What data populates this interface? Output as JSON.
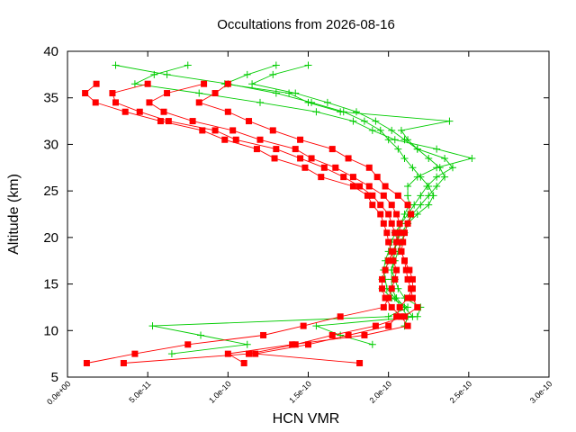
{
  "chart_data": {
    "type": "line",
    "title": "Occultations from 2026-08-16",
    "xlabel": "HCN VMR",
    "ylabel": "Altitude (km)",
    "xlim": [
      0,
      3e-10
    ],
    "ylim": [
      5,
      40
    ],
    "xticks": [
      {
        "value": 0,
        "label": "0.0e+00"
      },
      {
        "value": 5e-11,
        "label": "5.0e-11"
      },
      {
        "value": 1e-10,
        "label": "1.0e-10"
      },
      {
        "value": 1.5e-10,
        "label": "1.5e-10"
      },
      {
        "value": 2e-10,
        "label": "2.0e-10"
      },
      {
        "value": 2.5e-10,
        "label": "2.5e-10"
      },
      {
        "value": 3e-10,
        "label": "3.0e-10"
      }
    ],
    "yticks": [
      {
        "value": 5,
        "label": "5"
      },
      {
        "value": 10,
        "label": "10"
      },
      {
        "value": 15,
        "label": "15"
      },
      {
        "value": 20,
        "label": "20"
      },
      {
        "value": 25,
        "label": "25"
      },
      {
        "value": 30,
        "label": "30"
      },
      {
        "value": 35,
        "label": "35"
      },
      {
        "value": 40,
        "label": "40"
      }
    ],
    "grid": false,
    "legend": "none",
    "series": [
      {
        "color": "#ff0000",
        "marker": "square",
        "y": [
          36.5,
          35.5,
          34.5,
          33.5,
          32.5,
          31.5,
          30.5,
          29.5,
          28.5,
          27.5,
          26.5,
          25.5,
          24.5,
          23.5,
          22.5,
          21.5,
          20.5,
          19.5,
          18.5,
          17.5,
          16.5,
          15.5,
          14.5,
          13.5,
          12.5,
          11.5,
          10.5,
          9.5,
          8.5,
          7.5,
          6.5
        ],
        "x": [
          1.8e-11,
          1.1e-11,
          1.75e-11,
          3.6e-11,
          5.8e-11,
          8.4e-11,
          9.8e-11,
          1.18e-10,
          1.29e-10,
          1.48e-10,
          1.58e-10,
          1.78e-10,
          1.87e-10,
          1.9e-10,
          1.95e-10,
          1.97e-10,
          1.99e-10,
          2e-10,
          2.02e-10,
          2.03e-10,
          2.05e-10,
          2.04e-10,
          2.02e-10,
          2e-10,
          1.97e-10,
          1.7e-10,
          1.47e-10,
          1.22e-10,
          7.5e-11,
          4.2e-11,
          1.2e-11
        ]
      },
      {
        "color": "#ff0000",
        "marker": "square",
        "y": [
          36.5,
          35.5,
          34.5,
          33.5,
          32.5,
          31.5,
          30.5,
          29.5,
          28.5,
          27.5,
          26.5,
          25.5,
          24.5,
          23.5,
          22.5,
          21.5,
          20.5,
          19.5,
          18.5,
          17.5,
          16.5,
          15.5,
          14.5,
          13.5,
          12.5,
          11.5,
          10.5,
          9.5,
          8.5,
          7.5,
          6.5
        ],
        "x": [
          5e-11,
          2.8e-11,
          3e-11,
          4.5e-11,
          6.3e-11,
          9.2e-11,
          1.05e-10,
          1.3e-10,
          1.45e-10,
          1.6e-10,
          1.72e-10,
          1.82e-10,
          1.9e-10,
          1.95e-10,
          2e-10,
          2.02e-10,
          2.04e-10,
          2.06e-10,
          2.08e-10,
          2.1e-10,
          2.11e-10,
          2.12e-10,
          2.14e-10,
          2.15e-10,
          2.18e-10,
          2.1e-10,
          1.92e-10,
          1.65e-10,
          1.42e-10,
          1.13e-10,
          3.5e-11
        ]
      },
      {
        "color": "#ff0000",
        "marker": "square",
        "y": [
          36.5,
          35.5,
          34.5,
          33.5,
          32.5,
          31.5,
          30.5,
          29.5,
          28.5,
          27.5,
          26.5,
          25.5,
          24.5,
          23.5,
          22.5,
          21.5,
          20.5,
          19.5,
          18.5,
          17.5,
          16.5,
          15.5,
          14.5,
          13.5,
          12.5,
          11.5,
          10.5,
          9.5,
          8.5,
          7.5,
          6.5
        ],
        "x": [
          8.5e-11,
          6.2e-11,
          5.1e-11,
          6e-11,
          7.8e-11,
          1.03e-10,
          1.2e-10,
          1.42e-10,
          1.52e-10,
          1.67e-10,
          1.78e-10,
          1.88e-10,
          1.97e-10,
          2.02e-10,
          2.05e-10,
          2.07e-10,
          2.07e-10,
          2.05e-10,
          2.03e-10,
          2e-10,
          1.98e-10,
          1.96e-10,
          1.96e-10,
          1.98e-10,
          2.02e-10,
          2.08e-10,
          2.12e-10,
          1.85e-10,
          1.4e-10,
          1e-10,
          1.1e-10
        ]
      },
      {
        "color": "#ff0000",
        "marker": "square",
        "y": [
          36.5,
          35.5,
          34.5,
          33.5,
          32.5,
          31.5,
          30.5,
          29.5,
          28.5,
          27.5,
          26.5,
          25.5,
          24.5,
          23.5,
          22.5,
          21.5,
          20.5,
          19.5,
          18.5,
          17.5,
          16.5,
          15.5,
          14.5,
          13.5,
          12.5,
          11.5,
          10.5,
          9.5,
          8.5,
          7.5,
          6.5
        ],
        "x": [
          1e-10,
          9.2e-11,
          8.2e-11,
          1e-10,
          1.13e-10,
          1.28e-10,
          1.45e-10,
          1.65e-10,
          1.75e-10,
          1.88e-10,
          1.93e-10,
          1.98e-10,
          2.06e-10,
          2.12e-10,
          2.14e-10,
          2.12e-10,
          2.1e-10,
          2.09e-10,
          2.08e-10,
          2.1e-10,
          2.13e-10,
          2.15e-10,
          2.15e-10,
          2.12e-10,
          2.07e-10,
          2.05e-10,
          2e-10,
          1.75e-10,
          1.5e-10,
          1.17e-10,
          1.82e-10
        ]
      },
      {
        "color": "#00cc00",
        "marker": "plus",
        "y": [
          38.5,
          37.5,
          36.5,
          35.5,
          34.5,
          33.5,
          32.5,
          31.5,
          30.5,
          29.5,
          28.5,
          27.5,
          26.5,
          25.5,
          24.5,
          23.5,
          22.5,
          21.5,
          20.5,
          19.5,
          18.5,
          17.5,
          16.5,
          15.5,
          14.5,
          13.5,
          12.5,
          11.5,
          10.5,
          9.5,
          8.5,
          7.5
        ],
        "x": [
          3e-11,
          6.2e-11,
          1e-10,
          1.3e-10,
          1.52e-10,
          1.72e-10,
          1.85e-10,
          1.95e-10,
          2e-10,
          2.06e-10,
          2.1e-10,
          2.15e-10,
          2.2e-10,
          2.25e-10,
          2.28e-10,
          2.25e-10,
          2.18e-10,
          2.12e-10,
          2.08e-10,
          2.05e-10,
          2.03e-10,
          2e-10,
          1.98e-10,
          1.96e-10,
          1.96e-10,
          2.02e-10,
          2.12e-10,
          2e-10,
          5.3e-11,
          8.3e-11,
          1.12e-10,
          6.5e-11
        ]
      },
      {
        "color": "#00cc00",
        "marker": "plus",
        "y": [
          38.5,
          37.5,
          36.5,
          35.5,
          34.5,
          33.5,
          32.5,
          31.5,
          30.5,
          29.5,
          28.5,
          27.5,
          26.5,
          25.5,
          24.5,
          23.5,
          22.5,
          21.5,
          20.5,
          19.5,
          18.5,
          17.5,
          16.5,
          15.5,
          14.5,
          13.5,
          12.5,
          11.5,
          10.5,
          9.5,
          8.5
        ],
        "x": [
          7.5e-11,
          5.4e-11,
          4.2e-11,
          8.2e-11,
          1.2e-10,
          1.55e-10,
          1.78e-10,
          1.9e-10,
          2.04e-10,
          2.3e-10,
          2.52e-10,
          2.3e-10,
          2.18e-10,
          2.12e-10,
          2.12e-10,
          2.13e-10,
          2.1e-10,
          2.08e-10,
          2.06e-10,
          2.05e-10,
          2.04e-10,
          2.03e-10,
          2.02e-10,
          2.04e-10,
          2.06e-10,
          2.1e-10,
          2.2e-10,
          2.18e-10,
          1.55e-10,
          1.7e-10,
          1.9e-10
        ]
      },
      {
        "color": "#00cc00",
        "marker": "plus",
        "y": [
          38.5,
          37.5,
          36.5,
          35.5,
          34.5,
          33.5,
          32.5,
          31.5,
          30.5,
          29.5,
          28.5,
          27.5,
          26.5,
          25.5,
          24.5,
          23.5,
          22.5,
          21.5,
          20.5,
          19.5,
          18.5,
          17.5,
          16.5,
          15.5,
          14.5,
          13.5,
          12.5,
          11.5,
          10.5
        ],
        "x": [
          1.3e-10,
          1.12e-10,
          9.8e-11,
          1.38e-10,
          1.5e-10,
          1.7e-10,
          2.38e-10,
          2.08e-10,
          2.12e-10,
          2.18e-10,
          2.35e-10,
          2.4e-10,
          2.3e-10,
          2.24e-10,
          2.2e-10,
          2.16e-10,
          2.12e-10,
          2.08e-10,
          2.04e-10,
          2.02e-10,
          2e-10,
          1.98e-10,
          1.97e-10,
          1.98e-10,
          1.99e-10,
          2.04e-10,
          2.08e-10,
          2.12e-10,
          2.1e-10
        ]
      },
      {
        "color": "#00cc00",
        "marker": "plus",
        "y": [
          38.5,
          37.5,
          36.5,
          35.5,
          34.5,
          33.5,
          32.5,
          31.5,
          30.5,
          29.5,
          28.5,
          27.5,
          26.5,
          25.5,
          24.5,
          23.5,
          22.5,
          21.5,
          20.5,
          19.5,
          18.5,
          17.5,
          16.5,
          15.5,
          14.5,
          13.5,
          12.5,
          11.5
        ],
        "x": [
          1.5e-10,
          1.28e-10,
          1.15e-10,
          1.42e-10,
          1.62e-10,
          1.8e-10,
          1.92e-10,
          2.02e-10,
          2.1e-10,
          2.18e-10,
          2.25e-10,
          2.32e-10,
          2.35e-10,
          2.3e-10,
          2.25e-10,
          2.2e-10,
          2.15e-10,
          2.12e-10,
          2.1e-10,
          2.08e-10,
          2.06e-10,
          2.04e-10,
          2.02e-10,
          2.02e-10,
          2.02e-10,
          2.05e-10,
          2.1e-10,
          2.15e-10
        ]
      }
    ]
  }
}
